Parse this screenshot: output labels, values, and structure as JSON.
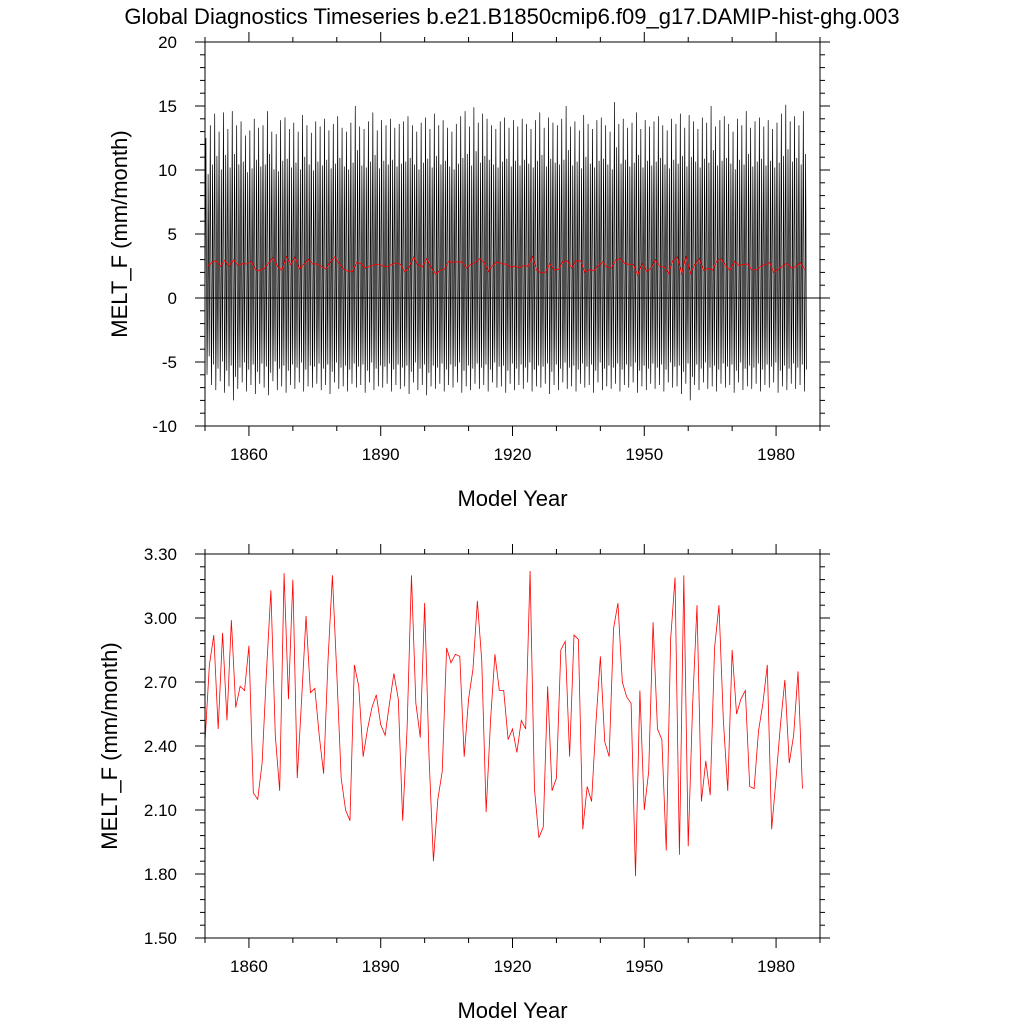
{
  "title": "Global Diagnostics Timeseries b.e21.B1850cmip6.f09_g17.DAMIP-hist-ghg.003",
  "colors": {
    "monthly_line": "#000000",
    "annual_line": "#ff0000",
    "zero_line": "#000000",
    "frame": "#000000"
  },
  "chart_data": [
    {
      "type": "line",
      "xlabel": "Model Year",
      "ylabel": "MELT_F (mm/month)",
      "xlim": [
        1850,
        1990
      ],
      "ylim": [
        -10,
        20
      ],
      "x_ticks": [
        1860,
        1890,
        1920,
        1950,
        1980
      ],
      "x_tick_labels": [
        "1860",
        "1890",
        "1920",
        "1950",
        "1980"
      ],
      "y_ticks": [
        -10,
        -5,
        0,
        5,
        10,
        15,
        20
      ],
      "y_tick_labels": [
        "-10",
        "-5",
        "0",
        "5",
        "10",
        "15",
        "20"
      ],
      "reference_line": 0,
      "series": [
        {
          "kind": "monthly",
          "color": "#000000",
          "annual_peak_approx": [
            12.5,
            13.5,
            14.4,
            13.0,
            14.5,
            13.2,
            14.6,
            13.5,
            13.8,
            12.7,
            13.1,
            14.0,
            13.3,
            13.5,
            14.6,
            13.0,
            12.8,
            13.9,
            14.1,
            13.2,
            13.7,
            13.0,
            14.3,
            13.5,
            12.9,
            13.8,
            13.4,
            14.0,
            13.1,
            13.6,
            14.2,
            13.3,
            13.0,
            13.7,
            15.0,
            13.4,
            13.2,
            13.8,
            14.5,
            13.1,
            13.9,
            13.5,
            14.0,
            13.3,
            13.6,
            13.8,
            14.2,
            13.5,
            13.0,
            13.7,
            14.1,
            13.2,
            14.4,
            13.5,
            13.9,
            13.3,
            13.0,
            13.6,
            14.2,
            14.6,
            13.4,
            14.9,
            13.7,
            14.4,
            14.0,
            13.5,
            13.2,
            13.8,
            14.1,
            13.3,
            13.9,
            13.4,
            14.0,
            13.6,
            13.2,
            13.9,
            14.5,
            13.3,
            14.1,
            13.7,
            13.5,
            14.0,
            15.0,
            13.4,
            13.8,
            13.1,
            14.3,
            13.6,
            13.2,
            13.9,
            14.1,
            13.5,
            13.0,
            15.3,
            13.6,
            14.0,
            13.3,
            13.7,
            14.5,
            13.2,
            13.9,
            13.4,
            13.8,
            14.2,
            13.5,
            13.1,
            14.0,
            13.6,
            14.4,
            13.3,
            14.3,
            13.8,
            13.2,
            14.1,
            13.7,
            15.0,
            13.4,
            13.9,
            14.2,
            13.6,
            13.0,
            14.0,
            13.5,
            14.6,
            13.3,
            13.8,
            14.1,
            13.4,
            13.9,
            13.2,
            13.7,
            14.4,
            15.1,
            13.8,
            14.2,
            13.5,
            14.6,
            13.3,
            14.4,
            13.7
          ],
          "annual_trough_approx": [
            -6.0,
            -6.8,
            -7.2,
            -6.5,
            -7.4,
            -6.9,
            -8.0,
            -7.1,
            -6.6,
            -7.3,
            -6.8,
            -7.5,
            -6.7,
            -7.0,
            -7.6,
            -6.5,
            -7.2,
            -6.9,
            -7.4,
            -6.8,
            -7.1,
            -6.6,
            -7.3,
            -6.9,
            -7.0,
            -6.7,
            -7.2,
            -6.8,
            -7.5,
            -6.6,
            -7.1,
            -6.9,
            -7.3,
            -6.7,
            -7.0,
            -6.8,
            -7.4,
            -6.6,
            -7.2,
            -6.9,
            -7.0,
            -6.7,
            -7.3,
            -6.8,
            -7.1,
            -6.9,
            -7.5,
            -6.6,
            -7.2,
            -6.8,
            -7.6,
            -6.9,
            -7.1,
            -6.7,
            -7.3,
            -6.8,
            -7.0,
            -6.6,
            -7.4,
            -6.9,
            -7.2,
            -6.7,
            -7.1,
            -6.8,
            -7.3,
            -6.6,
            -7.0,
            -6.9,
            -7.4,
            -6.7,
            -7.2,
            -6.8,
            -7.1,
            -6.6,
            -7.3,
            -6.9,
            -7.0,
            -6.7,
            -7.5,
            -6.8,
            -7.2,
            -6.6,
            -7.1,
            -6.9,
            -7.3,
            -6.7,
            -7.0,
            -6.8,
            -7.4,
            -6.6,
            -7.2,
            -6.9,
            -7.1,
            -6.7,
            -7.3,
            -6.8,
            -7.0,
            -6.6,
            -7.4,
            -6.9,
            -7.2,
            -6.7,
            -7.1,
            -6.8,
            -7.3,
            -6.6,
            -7.0,
            -6.9,
            -7.5,
            -6.7,
            -8.0,
            -6.8,
            -7.2,
            -6.6,
            -7.1,
            -6.9,
            -7.3,
            -6.7,
            -7.0,
            -6.8,
            -7.4,
            -6.6,
            -7.2,
            -6.9,
            -7.1,
            -6.7,
            -7.3,
            -6.8,
            -7.0,
            -6.6,
            -7.4,
            -6.9,
            -7.2,
            -6.7,
            -7.1,
            -6.8,
            -7.3,
            -6.6,
            -7.0,
            -5.5
          ]
        },
        {
          "kind": "annual",
          "color": "#ff0000",
          "x_start": 1850,
          "values": [
            2.42,
            2.78,
            2.92,
            2.48,
            2.93,
            2.52,
            2.99,
            2.58,
            2.68,
            2.66,
            2.87,
            2.18,
            2.15,
            2.32,
            2.75,
            3.13,
            2.45,
            2.19,
            3.21,
            2.62,
            3.18,
            2.25,
            2.62,
            3.01,
            2.65,
            2.67,
            2.45,
            2.27,
            2.8,
            3.2,
            2.74,
            2.25,
            2.1,
            2.05,
            2.78,
            2.68,
            2.35,
            2.48,
            2.58,
            2.64,
            2.5,
            2.45,
            2.6,
            2.74,
            2.62,
            2.05,
            2.48,
            3.2,
            2.6,
            2.44,
            3.07,
            2.35,
            1.86,
            2.15,
            2.28,
            2.86,
            2.79,
            2.83,
            2.82,
            2.35,
            2.62,
            2.76,
            3.08,
            2.8,
            2.09,
            2.52,
            2.83,
            2.66,
            2.66,
            2.43,
            2.48,
            2.37,
            2.52,
            2.48,
            3.22,
            2.2,
            1.97,
            2.02,
            2.68,
            2.19,
            2.25,
            2.85,
            2.89,
            2.35,
            2.92,
            2.9,
            2.01,
            2.21,
            2.14,
            2.51,
            2.82,
            2.42,
            2.35,
            2.95,
            3.07,
            2.7,
            2.63,
            2.6,
            1.79,
            2.66,
            2.1,
            2.28,
            2.98,
            2.48,
            2.43,
            1.91,
            2.9,
            3.19,
            1.89,
            3.2,
            1.93,
            2.59,
            3.06,
            2.14,
            2.33,
            2.17,
            2.86,
            3.06,
            2.52,
            2.19,
            2.85,
            2.55,
            2.62,
            2.66,
            2.21,
            2.2,
            2.47,
            2.6,
            2.78,
            2.01,
            2.25,
            2.5,
            2.71,
            2.32,
            2.45,
            2.75,
            2.2
          ]
        }
      ]
    },
    {
      "type": "line",
      "xlabel": "Model Year",
      "ylabel": "MELT_F (mm/month)",
      "xlim": [
        1850,
        1990
      ],
      "ylim": [
        1.5,
        3.3
      ],
      "x_ticks": [
        1860,
        1890,
        1920,
        1950,
        1980
      ],
      "x_tick_labels": [
        "1860",
        "1890",
        "1920",
        "1950",
        "1980"
      ],
      "y_ticks": [
        1.5,
        1.8,
        2.1,
        2.4,
        2.7,
        3.0,
        3.3
      ],
      "y_tick_labels": [
        "1.50",
        "1.80",
        "2.10",
        "2.40",
        "2.70",
        "3.00",
        "3.30"
      ],
      "series": [
        {
          "kind": "annual",
          "color": "#ff0000",
          "x_start": 1850,
          "values_ref": "same as annual series of first chart"
        }
      ]
    }
  ]
}
